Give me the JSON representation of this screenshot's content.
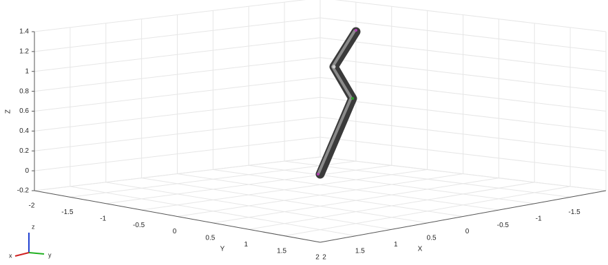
{
  "axes": {
    "z_label": "Z",
    "y_label": "Y",
    "x_label": "X",
    "zticks": [
      1.4,
      1.2,
      1,
      0.8,
      0.6,
      0.4,
      0.2,
      0,
      -0.2
    ],
    "yticks": [
      -2,
      -1.5,
      -1,
      -0.5,
      0,
      0.5,
      1,
      1.5,
      2
    ],
    "xticks": [
      2,
      1.5,
      1,
      0.5,
      0,
      -0.5,
      -1,
      -1.5
    ]
  },
  "triad": {
    "x": "x",
    "y": "y",
    "z": "z"
  }
}
